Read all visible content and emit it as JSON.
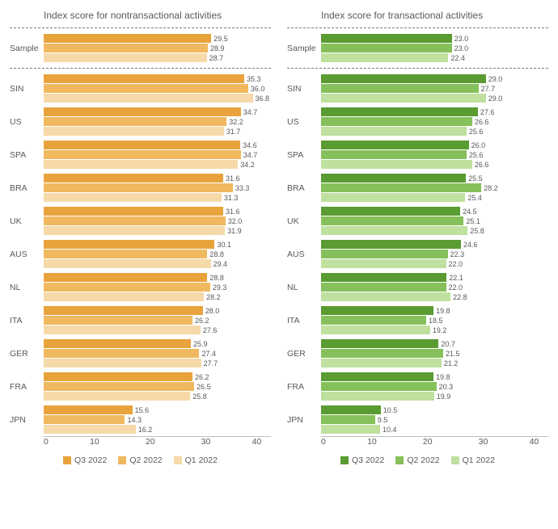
{
  "xmax": 40,
  "xticks": [
    0,
    10,
    20,
    30,
    40
  ],
  "panels": [
    {
      "title": "Index score for nontransactional activities",
      "colors": [
        "#e8a33d",
        "#f0b95f",
        "#f6d9a8"
      ],
      "legend": [
        "Q3 2022",
        "Q2 2022",
        "Q1 2022"
      ],
      "sample": {
        "label": "Sample",
        "values": [
          29.5,
          28.9,
          28.7
        ]
      },
      "rows": [
        {
          "label": "SIN",
          "values": [
            35.3,
            36.0,
            36.8
          ]
        },
        {
          "label": "US",
          "values": [
            34.7,
            32.2,
            31.7
          ]
        },
        {
          "label": "SPA",
          "values": [
            34.6,
            34.7,
            34.2
          ]
        },
        {
          "label": "BRA",
          "values": [
            31.6,
            33.3,
            31.3
          ]
        },
        {
          "label": "UK",
          "values": [
            31.6,
            32.0,
            31.9
          ]
        },
        {
          "label": "AUS",
          "values": [
            30.1,
            28.8,
            29.4
          ]
        },
        {
          "label": "NL",
          "values": [
            28.8,
            29.3,
            28.2
          ]
        },
        {
          "label": "ITA",
          "values": [
            28.0,
            26.2,
            27.6
          ]
        },
        {
          "label": "GER",
          "values": [
            25.9,
            27.4,
            27.7
          ]
        },
        {
          "label": "FRA",
          "values": [
            26.2,
            26.5,
            25.8
          ]
        },
        {
          "label": "JPN",
          "values": [
            15.6,
            14.3,
            16.2
          ]
        }
      ]
    },
    {
      "title": "Index score for transactional activities",
      "colors": [
        "#5a9b32",
        "#86c05a",
        "#bfe09f"
      ],
      "legend": [
        "Q3 2022",
        "Q2 2022",
        "Q1 2022"
      ],
      "sample": {
        "label": "Sample",
        "values": [
          23.0,
          23.0,
          22.4
        ]
      },
      "rows": [
        {
          "label": "SIN",
          "values": [
            29.0,
            27.7,
            29.0
          ]
        },
        {
          "label": "US",
          "values": [
            27.6,
            26.6,
            25.6
          ]
        },
        {
          "label": "SPA",
          "values": [
            26.0,
            25.6,
            26.6
          ]
        },
        {
          "label": "BRA",
          "values": [
            25.5,
            28.2,
            25.4
          ]
        },
        {
          "label": "UK",
          "values": [
            24.5,
            25.1,
            25.8
          ]
        },
        {
          "label": "AUS",
          "values": [
            24.6,
            22.3,
            22.0
          ]
        },
        {
          "label": "NL",
          "values": [
            22.1,
            22.0,
            22.8
          ]
        },
        {
          "label": "ITA",
          "values": [
            19.8,
            18.5,
            19.2
          ]
        },
        {
          "label": "GER",
          "values": [
            20.7,
            21.5,
            21.2
          ]
        },
        {
          "label": "FRA",
          "values": [
            19.8,
            20.3,
            19.9
          ]
        },
        {
          "label": "JPN",
          "values": [
            10.5,
            9.5,
            10.4
          ]
        }
      ]
    }
  ]
}
